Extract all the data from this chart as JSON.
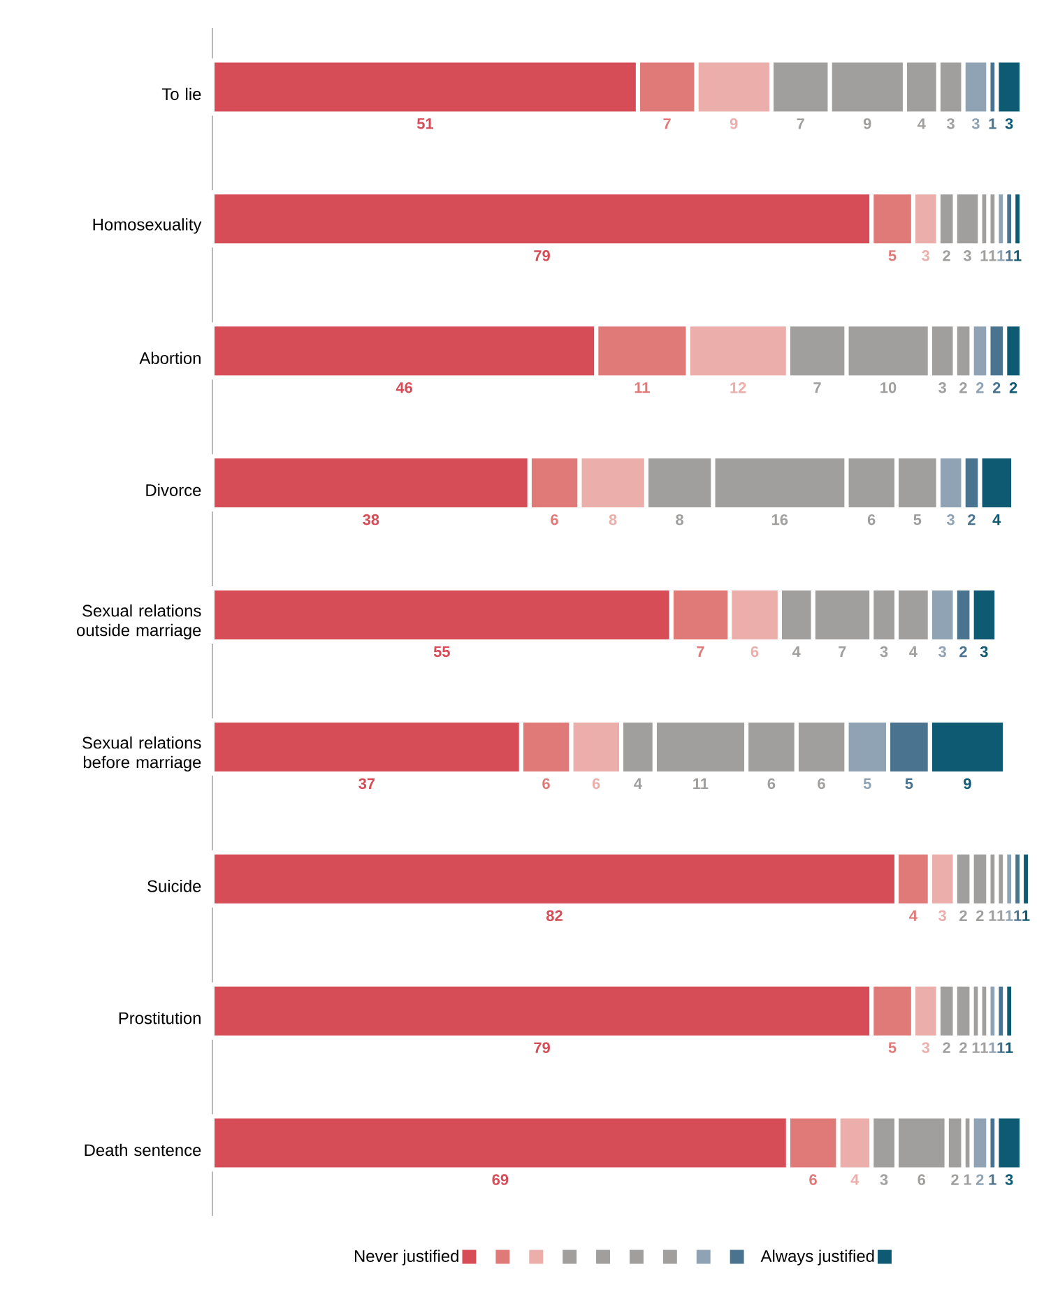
{
  "chart_data": {
    "type": "bar",
    "orientation": "horizontal",
    "stacked": true,
    "data_labels": true,
    "legend": "bottom",
    "tick_labels": "y",
    "categories": [
      "To lie",
      "Homosexuality",
      "Abortion",
      "Divorce",
      "Sexual relations outside marriage",
      "Sexual relations before marriage",
      "Suicide",
      "Prostitution",
      "Death sentence"
    ],
    "series": [
      {
        "name": "Never justified",
        "color": "#d64d57",
        "values": [
          51,
          79,
          46,
          38,
          55,
          37,
          82,
          79,
          69
        ]
      },
      {
        "color": "#e07a78",
        "values": [
          7,
          5,
          11,
          6,
          7,
          6,
          4,
          5,
          6
        ]
      },
      {
        "color": "#ebaeab",
        "values": [
          9,
          3,
          12,
          8,
          6,
          6,
          3,
          3,
          4
        ]
      },
      {
        "color": "#a09f9e",
        "values": [
          7,
          2,
          7,
          8,
          4,
          4,
          2,
          2,
          3
        ]
      },
      {
        "color": "#a09f9e",
        "values": [
          9,
          3,
          10,
          16,
          7,
          11,
          2,
          2,
          6
        ]
      },
      {
        "color": "#a09f9e",
        "values": [
          4,
          1,
          3,
          6,
          3,
          6,
          1,
          1,
          2
        ]
      },
      {
        "color": "#a09f9e",
        "values": [
          3,
          1,
          2,
          5,
          4,
          6,
          1,
          1,
          1
        ]
      },
      {
        "color": "#8fa3b5",
        "values": [
          3,
          1,
          2,
          3,
          3,
          5,
          1,
          1,
          2
        ]
      },
      {
        "color": "#4a738f",
        "values": [
          1,
          1,
          2,
          2,
          2,
          5,
          1,
          1,
          1
        ]
      },
      {
        "name": "Always justified",
        "color": "#0e5a73",
        "values": [
          3,
          1,
          2,
          4,
          3,
          9,
          1,
          1,
          3
        ]
      }
    ]
  }
}
